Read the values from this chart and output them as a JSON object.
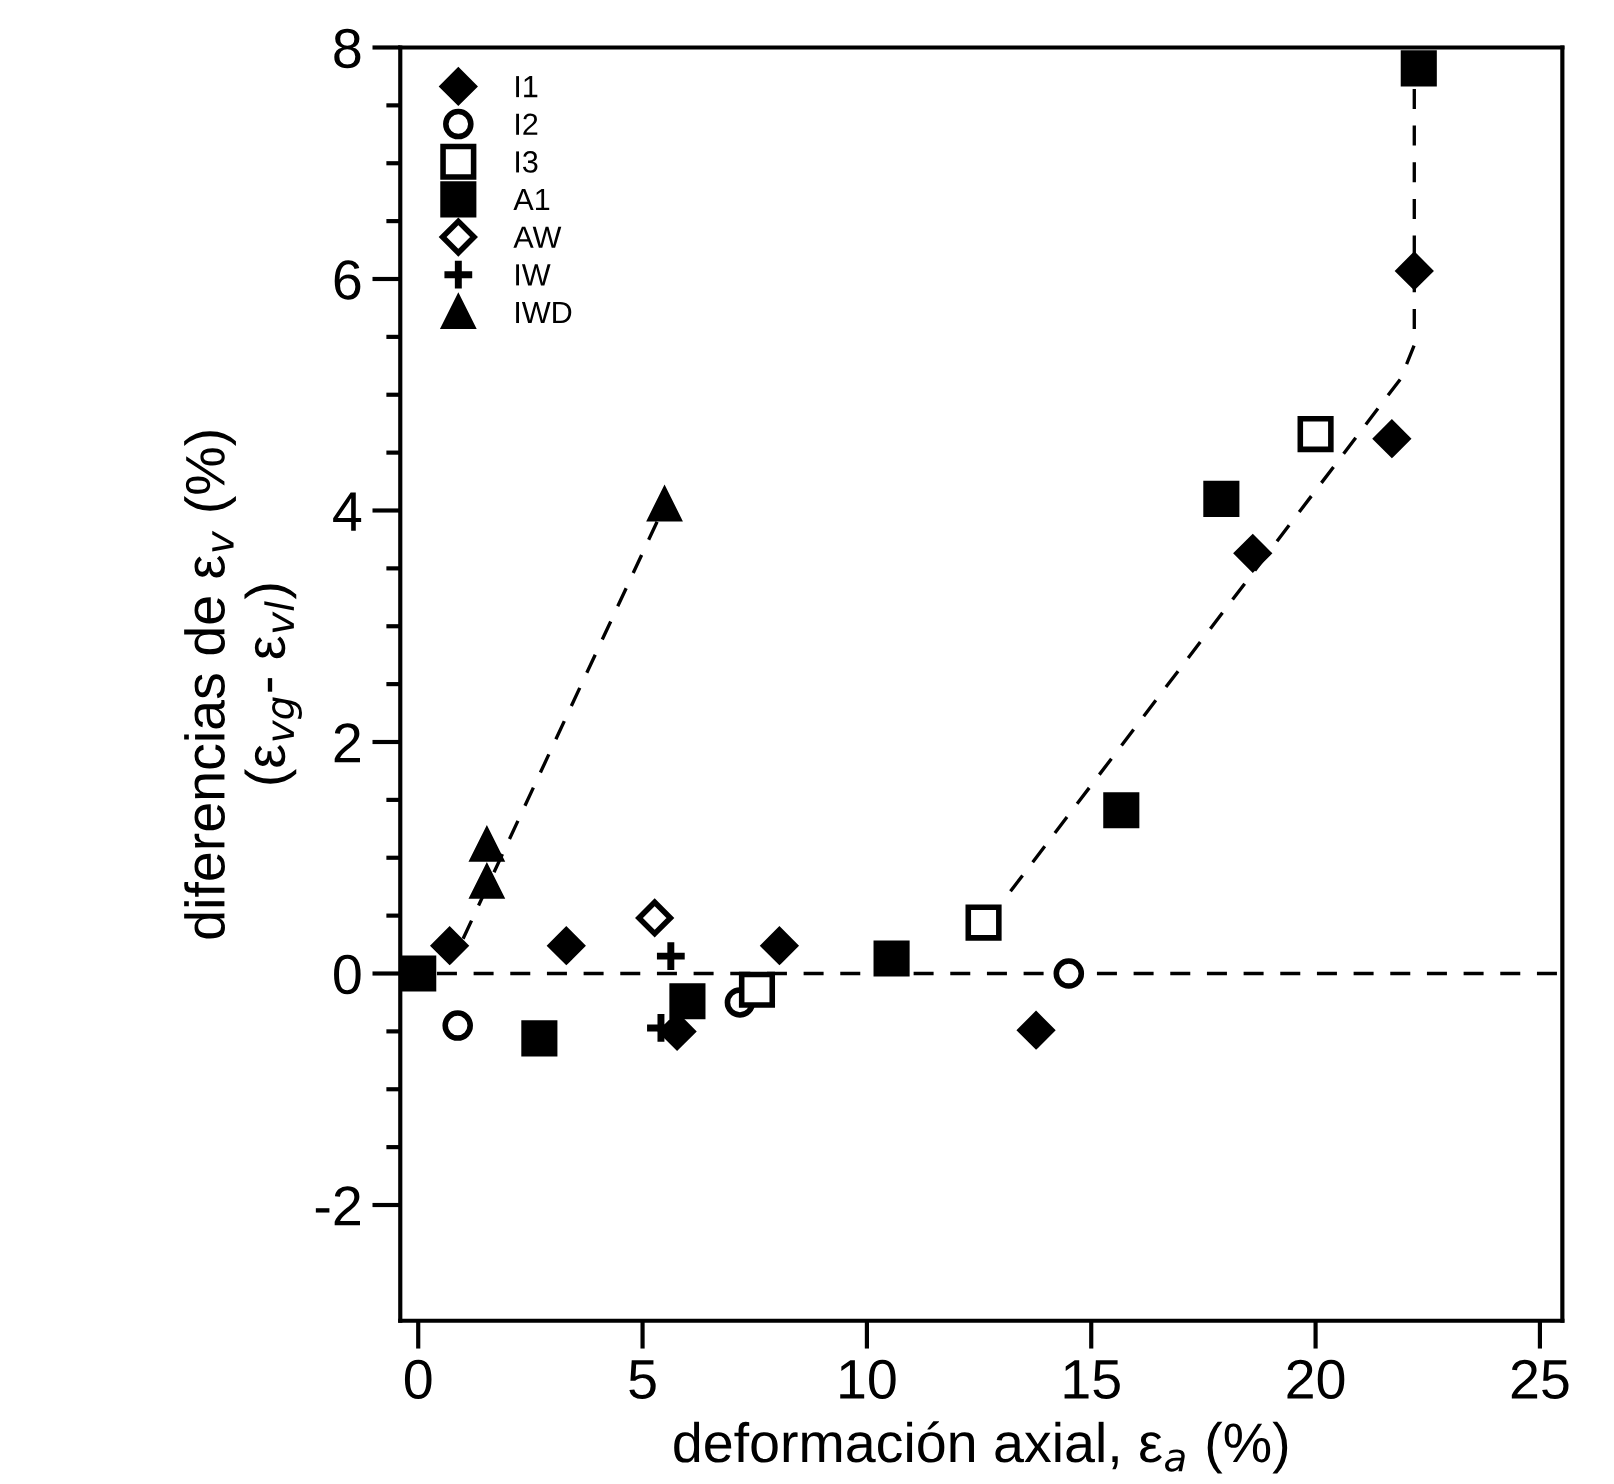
{
  "chart_data": {
    "type": "scatter",
    "xlabel": "deformación axial, ε$_{a}$ (%)",
    "ylabel": "diferencias de ε$_{v}$ (%)\n(ε$_{vg}$- ε$_{vl}$)",
    "xlim": [
      -0.4,
      25.5
    ],
    "ylim": [
      -3,
      8
    ],
    "xticks": [
      0,
      5,
      10,
      15,
      20,
      25
    ],
    "yticks": [
      -2,
      {
        "value": -1.5,
        "label": null
      },
      {
        "value": -1,
        "label": null
      },
      {
        "value": -0.5,
        "label": null
      },
      0,
      {
        "value": 0.5,
        "label": null
      },
      {
        "value": 1,
        "label": null
      },
      {
        "value": 1.5,
        "label": null
      },
      2,
      {
        "value": 2.5,
        "label": null
      },
      {
        "value": 3,
        "label": null
      },
      {
        "value": 3.5,
        "label": null
      },
      4,
      {
        "value": 4.5,
        "label": null
      },
      {
        "value": 5,
        "label": null
      },
      {
        "value": 5.5,
        "label": null
      },
      6,
      {
        "value": 6.5,
        "label": null
      },
      {
        "value": 7,
        "label": null
      },
      {
        "value": 7.5,
        "label": null
      },
      8
    ],
    "grid": false,
    "legend": "top left",
    "ref_lines": [
      {
        "axis": "y",
        "value": 0,
        "color": "#000000",
        "line_style": "dashed"
      }
    ],
    "series": [
      {
        "name": "I1",
        "marker": "diamond",
        "color": "#000000",
        "x": [
          0.7,
          3.3,
          5.77,
          8.05,
          13.77,
          18.6,
          21.7,
          22.2
        ],
        "values": [
          0.24,
          0.24,
          -0.5,
          0.24,
          -0.49,
          3.63,
          4.62,
          6.07
        ]
      },
      {
        "name": "I2",
        "marker": "circle",
        "color": "#ffffff",
        "x": [
          0.88,
          7.17,
          14.5
        ],
        "values": [
          -0.45,
          -0.25,
          0
        ]
      },
      {
        "name": "I3",
        "marker": "square",
        "color": "#ffffff",
        "x": [
          7.55,
          12.6,
          20.0
        ],
        "values": [
          -0.14,
          0.44,
          4.66
        ]
      },
      {
        "name": "A1",
        "marker": "square",
        "color": "#000000",
        "x": [
          0,
          2.7,
          6.0,
          10.55,
          15.67,
          17.9,
          22.3
        ],
        "values": [
          0,
          -0.56,
          -0.24,
          0.13,
          1.41,
          4.1,
          7.82
        ]
      },
      {
        "name": "AW",
        "marker": "diamond",
        "color": "#ffffff",
        "x": [
          5.27
        ],
        "values": [
          0.48
        ]
      },
      {
        "name": "IW",
        "marker": "cross",
        "color": "#000000",
        "x": [
          5.41,
          5.63
        ],
        "values": [
          -0.47,
          0.15
        ]
      },
      {
        "name": "IWD",
        "marker": "triangle",
        "color": "#000000",
        "x": [
          1.53,
          1.53,
          5.49
        ],
        "values": [
          0.79,
          1.11,
          4.05
        ]
      },
      {
        "type": "line",
        "line_style": "dashed",
        "color": "#000000",
        "x": [
          1.0,
          5.5
        ],
        "values": [
          0.3,
          4.05
        ]
      },
      {
        "type": "line",
        "line_style": "dashed",
        "color": "#000000",
        "x": [
          13.2,
          21.9,
          22.2,
          22.2
        ],
        "values": [
          0.71,
          5.14,
          5.43,
          7.8
        ]
      }
    ]
  }
}
